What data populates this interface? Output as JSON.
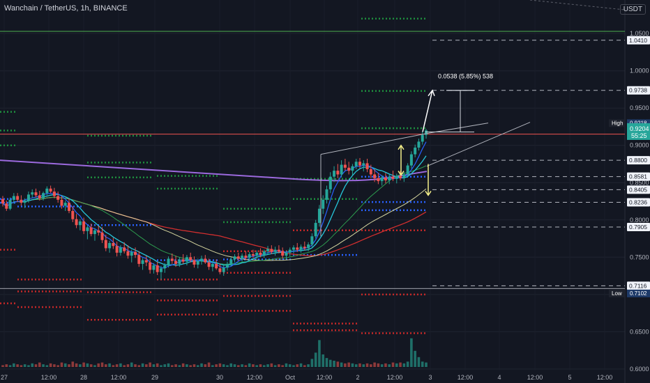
{
  "header": {
    "symbol_title": "Wanchain / TetherUS, 1h, BINANCE",
    "currency_unit": "USDT"
  },
  "chart_data": {
    "type": "candlestick",
    "title": "Wanchain / TetherUS, 1h, BINANCE",
    "ylim": [
      0.598,
      1.095
    ],
    "y_ticks": [
      "1.0500",
      "1.0000",
      "0.9500",
      "0.9000",
      "0.8500",
      "0.8000",
      "0.7500",
      "0.7000",
      "0.6500",
      "0.6000"
    ],
    "x_ticks": [
      "27",
      "12:00",
      "28",
      "12:00",
      "29",
      "30",
      "12:00",
      "Oct",
      "12:00",
      "2",
      "12:00",
      "3",
      "12:00",
      "4",
      "12:00",
      "5",
      "12:00"
    ],
    "price_labels": [
      {
        "value": 1.041,
        "text": "1.0410",
        "kind": "level"
      },
      {
        "value": 0.9738,
        "text": "0.9738",
        "kind": "level"
      },
      {
        "value": 0.9218,
        "text": "0.9218",
        "kind": "high",
        "tag": "High"
      },
      {
        "value": 0.9204,
        "text": "0.9204",
        "kind": "current",
        "countdown": "55:25"
      },
      {
        "value": 0.88,
        "text": "0.8800",
        "kind": "level"
      },
      {
        "value": 0.8581,
        "text": "0.8581",
        "kind": "level"
      },
      {
        "value": 0.8405,
        "text": "0.8405",
        "kind": "level"
      },
      {
        "value": 0.8236,
        "text": "0.8236",
        "kind": "level"
      },
      {
        "value": 0.7905,
        "text": "0.7905",
        "kind": "level"
      },
      {
        "value": 0.7116,
        "text": "0.7116",
        "kind": "level"
      },
      {
        "value": 0.7102,
        "text": "0.7102",
        "kind": "low",
        "tag": "Low"
      }
    ],
    "annotations": [
      {
        "text": "0.0538 (5.85%) 538"
      }
    ],
    "colors": {
      "background": "#131722",
      "up": "#26a69a",
      "down": "#ef5350",
      "ma_purple": "#9c6ade",
      "ma_red": "#d32f2f",
      "ma_yellow": "#d8d8a0",
      "ma_green": "#2e9e4f",
      "ma_teal": "#26c6da",
      "ma_blue": "#2962ff",
      "green_line": "#4caf50",
      "red_line": "#ef5350"
    },
    "candles": [
      [
        0.828,
        0.832,
        0.818,
        0.822
      ],
      [
        0.822,
        0.826,
        0.812,
        0.815
      ],
      [
        0.815,
        0.83,
        0.813,
        0.827
      ],
      [
        0.827,
        0.836,
        0.822,
        0.832
      ],
      [
        0.832,
        0.836,
        0.824,
        0.827
      ],
      [
        0.827,
        0.833,
        0.819,
        0.823
      ],
      [
        0.823,
        0.829,
        0.816,
        0.826
      ],
      [
        0.826,
        0.838,
        0.823,
        0.834
      ],
      [
        0.834,
        0.841,
        0.829,
        0.837
      ],
      [
        0.837,
        0.842,
        0.83,
        0.833
      ],
      [
        0.833,
        0.839,
        0.826,
        0.829
      ],
      [
        0.829,
        0.838,
        0.826,
        0.836
      ],
      [
        0.836,
        0.845,
        0.833,
        0.842
      ],
      [
        0.842,
        0.846,
        0.836,
        0.838
      ],
      [
        0.838,
        0.843,
        0.829,
        0.832
      ],
      [
        0.832,
        0.838,
        0.823,
        0.827
      ],
      [
        0.827,
        0.832,
        0.815,
        0.819
      ],
      [
        0.819,
        0.826,
        0.812,
        0.823
      ],
      [
        0.823,
        0.829,
        0.809,
        0.812
      ],
      [
        0.812,
        0.818,
        0.797,
        0.801
      ],
      [
        0.801,
        0.808,
        0.789,
        0.793
      ],
      [
        0.793,
        0.801,
        0.786,
        0.798
      ],
      [
        0.798,
        0.803,
        0.781,
        0.785
      ],
      [
        0.785,
        0.793,
        0.774,
        0.79
      ],
      [
        0.79,
        0.795,
        0.778,
        0.781
      ],
      [
        0.781,
        0.789,
        0.772,
        0.786
      ],
      [
        0.786,
        0.792,
        0.779,
        0.783
      ],
      [
        0.783,
        0.79,
        0.769,
        0.773
      ],
      [
        0.773,
        0.78,
        0.758,
        0.762
      ],
      [
        0.762,
        0.772,
        0.756,
        0.769
      ],
      [
        0.769,
        0.776,
        0.761,
        0.765
      ],
      [
        0.765,
        0.771,
        0.751,
        0.756
      ],
      [
        0.756,
        0.766,
        0.752,
        0.763
      ],
      [
        0.763,
        0.77,
        0.755,
        0.758
      ],
      [
        0.758,
        0.766,
        0.748,
        0.752
      ],
      [
        0.752,
        0.76,
        0.743,
        0.757
      ],
      [
        0.757,
        0.763,
        0.749,
        0.753
      ],
      [
        0.753,
        0.758,
        0.737,
        0.741
      ],
      [
        0.741,
        0.749,
        0.733,
        0.746
      ],
      [
        0.746,
        0.752,
        0.738,
        0.743
      ],
      [
        0.743,
        0.748,
        0.728,
        0.733
      ],
      [
        0.733,
        0.742,
        0.728,
        0.739
      ],
      [
        0.739,
        0.744,
        0.726,
        0.73
      ],
      [
        0.73,
        0.738,
        0.72,
        0.735
      ],
      [
        0.735,
        0.742,
        0.729,
        0.739
      ],
      [
        0.739,
        0.751,
        0.736,
        0.748
      ],
      [
        0.748,
        0.755,
        0.741,
        0.745
      ],
      [
        0.745,
        0.752,
        0.737,
        0.741
      ],
      [
        0.741,
        0.75,
        0.737,
        0.747
      ],
      [
        0.747,
        0.754,
        0.741,
        0.744
      ],
      [
        0.744,
        0.753,
        0.739,
        0.75
      ],
      [
        0.75,
        0.756,
        0.743,
        0.746
      ],
      [
        0.746,
        0.751,
        0.736,
        0.74
      ],
      [
        0.74,
        0.748,
        0.735,
        0.745
      ],
      [
        0.745,
        0.752,
        0.74,
        0.748
      ],
      [
        0.748,
        0.753,
        0.741,
        0.743
      ],
      [
        0.743,
        0.748,
        0.733,
        0.737
      ],
      [
        0.737,
        0.745,
        0.731,
        0.741
      ],
      [
        0.741,
        0.747,
        0.733,
        0.735
      ],
      [
        0.735,
        0.741,
        0.727,
        0.73
      ],
      [
        0.73,
        0.739,
        0.725,
        0.736
      ],
      [
        0.736,
        0.744,
        0.732,
        0.741
      ],
      [
        0.741,
        0.75,
        0.738,
        0.747
      ],
      [
        0.747,
        0.754,
        0.743,
        0.751
      ],
      [
        0.751,
        0.756,
        0.745,
        0.748
      ],
      [
        0.748,
        0.755,
        0.744,
        0.752
      ],
      [
        0.752,
        0.758,
        0.746,
        0.749
      ],
      [
        0.749,
        0.757,
        0.745,
        0.754
      ],
      [
        0.754,
        0.76,
        0.749,
        0.752
      ],
      [
        0.752,
        0.759,
        0.747,
        0.756
      ],
      [
        0.756,
        0.762,
        0.75,
        0.753
      ],
      [
        0.753,
        0.76,
        0.749,
        0.758
      ],
      [
        0.758,
        0.765,
        0.754,
        0.761
      ],
      [
        0.761,
        0.766,
        0.754,
        0.757
      ],
      [
        0.757,
        0.764,
        0.752,
        0.76
      ],
      [
        0.76,
        0.766,
        0.755,
        0.758
      ],
      [
        0.758,
        0.763,
        0.748,
        0.752
      ],
      [
        0.752,
        0.759,
        0.747,
        0.756
      ],
      [
        0.756,
        0.763,
        0.751,
        0.76
      ],
      [
        0.76,
        0.766,
        0.755,
        0.763
      ],
      [
        0.763,
        0.769,
        0.757,
        0.76
      ],
      [
        0.76,
        0.767,
        0.756,
        0.764
      ],
      [
        0.764,
        0.771,
        0.759,
        0.762
      ],
      [
        0.762,
        0.77,
        0.758,
        0.767
      ],
      [
        0.767,
        0.782,
        0.764,
        0.778
      ],
      [
        0.778,
        0.8,
        0.775,
        0.796
      ],
      [
        0.796,
        0.82,
        0.791,
        0.815
      ],
      [
        0.815,
        0.833,
        0.808,
        0.827
      ],
      [
        0.827,
        0.846,
        0.822,
        0.841
      ],
      [
        0.841,
        0.864,
        0.836,
        0.858
      ],
      [
        0.858,
        0.872,
        0.851,
        0.866
      ],
      [
        0.866,
        0.875,
        0.856,
        0.861
      ],
      [
        0.861,
        0.88,
        0.857,
        0.874
      ],
      [
        0.874,
        0.882,
        0.866,
        0.87
      ],
      [
        0.87,
        0.878,
        0.861,
        0.866
      ],
      [
        0.866,
        0.875,
        0.86,
        0.872
      ],
      [
        0.872,
        0.882,
        0.868,
        0.878
      ],
      [
        0.878,
        0.883,
        0.869,
        0.873
      ],
      [
        0.873,
        0.88,
        0.865,
        0.876
      ],
      [
        0.876,
        0.882,
        0.864,
        0.868
      ],
      [
        0.868,
        0.874,
        0.856,
        0.861
      ],
      [
        0.861,
        0.868,
        0.851,
        0.856
      ],
      [
        0.856,
        0.863,
        0.848,
        0.852
      ],
      [
        0.852,
        0.86,
        0.846,
        0.857
      ],
      [
        0.857,
        0.863,
        0.849,
        0.853
      ],
      [
        0.853,
        0.861,
        0.848,
        0.858
      ],
      [
        0.858,
        0.866,
        0.852,
        0.855
      ],
      [
        0.855,
        0.862,
        0.849,
        0.859
      ],
      [
        0.859,
        0.866,
        0.853,
        0.856
      ],
      [
        0.856,
        0.864,
        0.851,
        0.861
      ],
      [
        0.861,
        0.876,
        0.858,
        0.873
      ],
      [
        0.873,
        0.892,
        0.869,
        0.888
      ],
      [
        0.888,
        0.901,
        0.884,
        0.897
      ],
      [
        0.897,
        0.909,
        0.893,
        0.905
      ],
      [
        0.905,
        0.918,
        0.901,
        0.914
      ],
      [
        0.914,
        0.922,
        0.909,
        0.92
      ]
    ],
    "volumes": [
      0.02,
      0.03,
      0.02,
      0.04,
      0.03,
      0.02,
      0.03,
      0.02,
      0.04,
      0.03,
      0.05,
      0.03,
      0.02,
      0.04,
      0.03,
      0.02,
      0.05,
      0.04,
      0.03,
      0.06,
      0.04,
      0.03,
      0.05,
      0.04,
      0.03,
      0.02,
      0.04,
      0.05,
      0.03,
      0.04,
      0.02,
      0.03,
      0.04,
      0.02,
      0.03,
      0.05,
      0.03,
      0.02,
      0.04,
      0.03,
      0.05,
      0.03,
      0.04,
      0.02,
      0.03,
      0.04,
      0.02,
      0.03,
      0.02,
      0.04,
      0.03,
      0.02,
      0.03,
      0.02,
      0.04,
      0.03,
      0.05,
      0.02,
      0.03,
      0.04,
      0.03,
      0.02,
      0.04,
      0.03,
      0.02,
      0.03,
      0.02,
      0.04,
      0.03,
      0.02,
      0.03,
      0.02,
      0.03,
      0.04,
      0.02,
      0.03,
      0.02,
      0.04,
      0.03,
      0.02,
      0.03,
      0.04,
      0.02,
      0.03,
      0.09,
      0.16,
      0.3,
      0.14,
      0.1,
      0.08,
      0.07,
      0.06,
      0.05,
      0.04,
      0.05,
      0.04,
      0.03,
      0.04,
      0.03,
      0.04,
      0.03,
      0.05,
      0.04,
      0.03,
      0.04,
      0.03,
      0.05,
      0.04,
      0.05,
      0.04,
      0.06,
      0.32,
      0.18,
      0.11,
      0.06,
      0.05
    ]
  }
}
